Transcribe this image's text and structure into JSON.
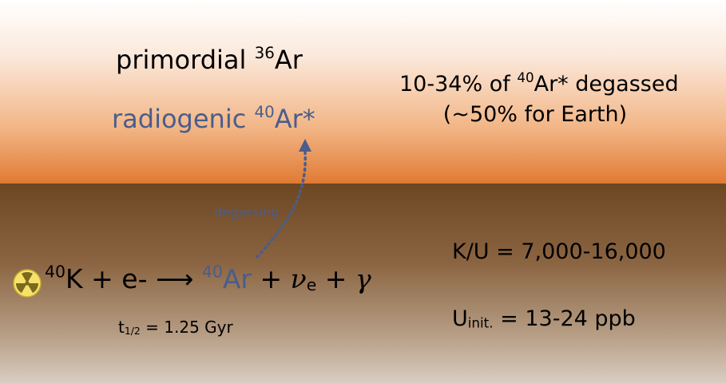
{
  "colors": {
    "blue_text": "#4a5d8c",
    "arrow": "#4a5d8c",
    "radiation_icon": "#f6e16b"
  },
  "atmosphere": {
    "primordial": {
      "word": "primordial",
      "mass": "36",
      "element": "Ar"
    },
    "radiogenic": {
      "word": "radiogenic",
      "mass": "40",
      "element": "Ar*"
    },
    "degassed_line1": {
      "pre": "10-34% of ",
      "mass": "40",
      "post": "Ar* degassed"
    },
    "degassed_line2": "(~50% for Earth)"
  },
  "arrow_label": "degassing",
  "reaction": {
    "reactant_mass": "40",
    "reactant_element": "K",
    "plus_electron": "+ e-",
    "arrow": "⟶",
    "product_mass": "40",
    "product_element": "Ar",
    "plus1": "+",
    "neutrino": "ν",
    "neutrino_sub": "e",
    "plus2": "+",
    "gamma": "γ"
  },
  "half_life": {
    "symbol": "t",
    "sub": "1/2",
    "value": " = 1.25 Gyr"
  },
  "ku_ratio": "K/U = 7,000-16,000",
  "u_initial": {
    "symbol": "U",
    "sub": "init.",
    "value": " = 13-24 ppb"
  }
}
